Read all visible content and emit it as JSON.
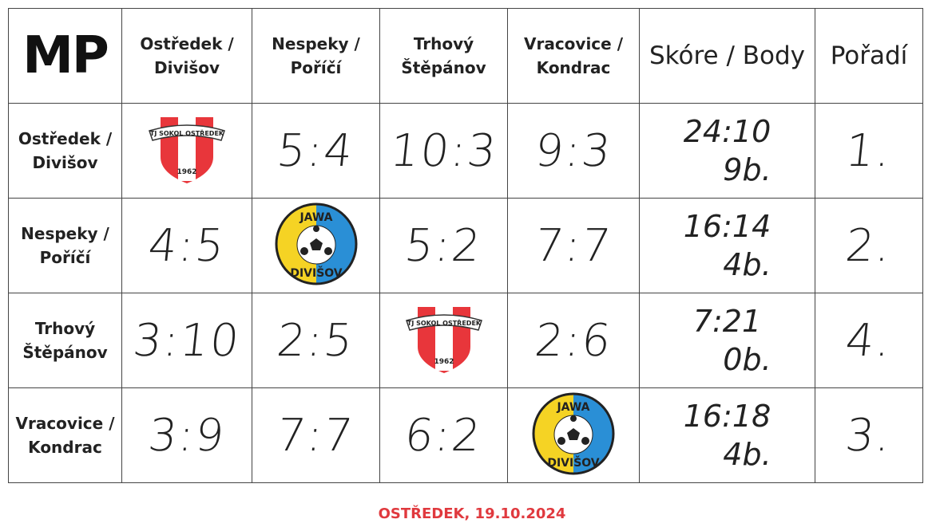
{
  "corner": "MP",
  "headers": [
    "Ostředek / Divišov",
    "Nespeky / Poříčí",
    "Trhový Štěpánov",
    "Vracovice / Kondrac",
    "Skóre / Body",
    "Pořadí"
  ],
  "rows": [
    {
      "team": "Ostředek / Divišov",
      "cells": [
        "logo:sokol",
        "5:4",
        "10:3",
        "9:3"
      ],
      "score": "24:10",
      "points": "9b.",
      "rank": "1."
    },
    {
      "team": "Nespeky / Poříčí",
      "cells": [
        "4:5",
        "logo:jawa",
        "5:2",
        "7:7"
      ],
      "score": "16:14",
      "points": "4b.",
      "rank": "2."
    },
    {
      "team": "Trhový Štěpánov",
      "cells": [
        "3:10",
        "2:5",
        "logo:sokol",
        "2:6"
      ],
      "score": "7:21",
      "points": "0b.",
      "rank": "4."
    },
    {
      "team": "Vracovice / Kondrac",
      "cells": [
        "3:9",
        "7:7",
        "6:2",
        "logo:jawa"
      ],
      "score": "16:18",
      "points": "4b.",
      "rank": "3."
    }
  ],
  "logos": {
    "sokol": {
      "top": "TJ SOKOL OSTŘEDEK",
      "year": "1962",
      "colors": [
        "#e8363b",
        "#ffffff"
      ]
    },
    "jawa": {
      "top": "JAWA",
      "bottom": "DIVIŠOV",
      "colors": [
        "#f5d324",
        "#2a8fd6"
      ]
    }
  },
  "footer": "OSTŘEDEK, 19.10.2024",
  "accent": "#e0393e"
}
